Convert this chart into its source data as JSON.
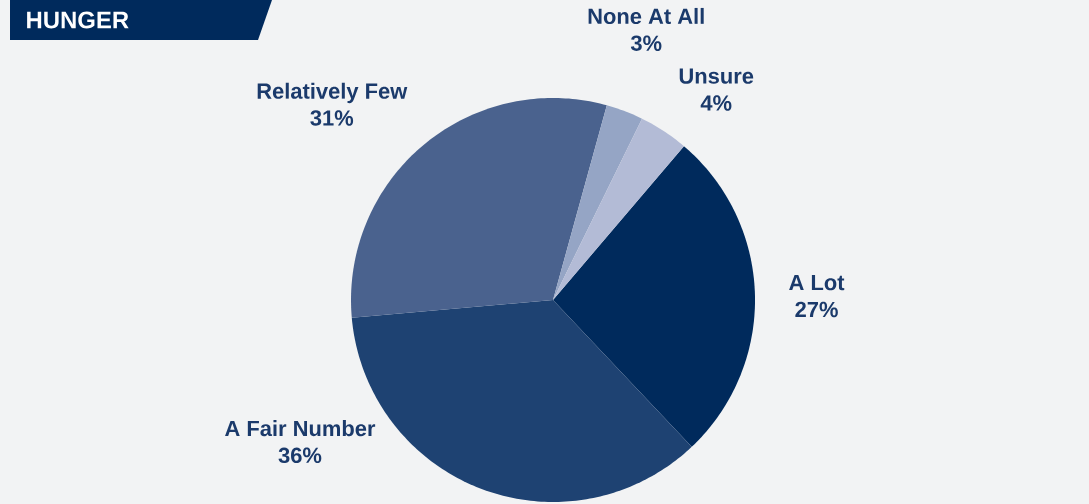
{
  "chart_data": {
    "type": "pie",
    "title": "HUNGER",
    "categories": [
      "A Lot",
      "A Fair Number",
      "Relatively Few",
      "None At All",
      "Unsure"
    ],
    "values": [
      27,
      36,
      31,
      3,
      4
    ],
    "value_labels": [
      "27%",
      "36%",
      "31%",
      "3%",
      "4%"
    ],
    "colors": [
      "#002a5c",
      "#1e4272",
      "#4a628e",
      "#95a5c5",
      "#b3bbd6"
    ]
  }
}
